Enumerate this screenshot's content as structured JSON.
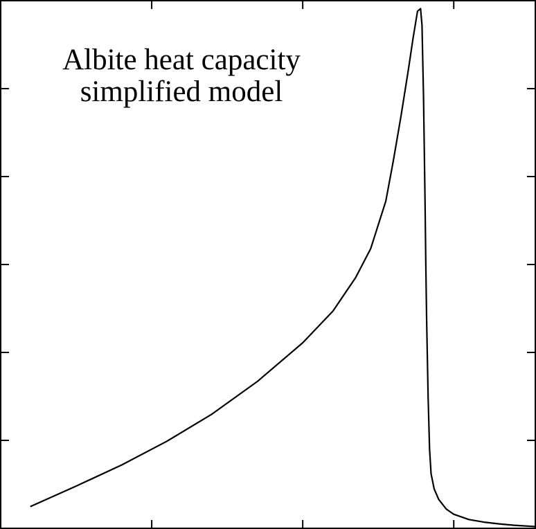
{
  "chart_data": {
    "type": "line",
    "title_lines": [
      "Albite heat capacity",
      "simplified model"
    ],
    "xlabel": "",
    "ylabel": "",
    "xlim": [
      0,
      3.54
    ],
    "ylim": [
      0,
      6
    ],
    "x_ticks": [
      1,
      2,
      3
    ],
    "y_ticks": [
      1,
      2,
      3,
      4,
      5
    ],
    "tick_labels_shown": false,
    "grid": false,
    "series": [
      {
        "x": [
          0.2,
          0.5,
          0.8,
          1.1,
          1.4,
          1.7,
          2.0,
          2.2,
          2.35,
          2.45,
          2.55,
          2.6,
          2.65,
          2.7,
          2.73,
          2.76,
          2.78,
          2.79,
          2.8,
          2.81,
          2.815,
          2.82,
          2.83,
          2.84,
          2.85,
          2.87,
          2.9,
          2.95,
          3.0,
          3.1,
          3.2,
          3.3,
          3.4,
          3.54
        ],
        "y": [
          0.25,
          0.48,
          0.72,
          0.99,
          1.3,
          1.67,
          2.11,
          2.47,
          2.85,
          3.18,
          3.72,
          4.18,
          4.68,
          5.22,
          5.57,
          5.88,
          5.91,
          5.72,
          4.9,
          3.7,
          3.0,
          2.4,
          1.5,
          0.9,
          0.62,
          0.45,
          0.33,
          0.22,
          0.16,
          0.1,
          0.07,
          0.05,
          0.035,
          0.02
        ]
      }
    ]
  }
}
